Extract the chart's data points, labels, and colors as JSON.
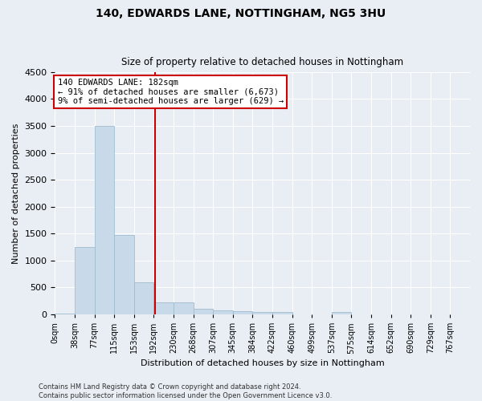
{
  "title_line1": "140, EDWARDS LANE, NOTTINGHAM, NG5 3HU",
  "title_line2": "Size of property relative to detached houses in Nottingham",
  "xlabel": "Distribution of detached houses by size in Nottingham",
  "ylabel": "Number of detached properties",
  "bar_color": "#c8daea",
  "bar_edge_color": "#a0bcd0",
  "categories": [
    "0sqm",
    "38sqm",
    "77sqm",
    "115sqm",
    "153sqm",
    "192sqm",
    "230sqm",
    "268sqm",
    "307sqm",
    "345sqm",
    "384sqm",
    "422sqm",
    "460sqm",
    "499sqm",
    "537sqm",
    "575sqm",
    "614sqm",
    "652sqm",
    "690sqm",
    "729sqm",
    "767sqm"
  ],
  "values": [
    10,
    1250,
    3500,
    1470,
    590,
    230,
    220,
    110,
    80,
    55,
    40,
    50,
    0,
    0,
    40,
    0,
    0,
    0,
    0,
    0,
    0
  ],
  "ylim": [
    0,
    4500
  ],
  "yticks": [
    0,
    500,
    1000,
    1500,
    2000,
    2500,
    3000,
    3500,
    4000,
    4500
  ],
  "annotation_text": "140 EDWARDS LANE: 182sqm\n← 91% of detached houses are smaller (6,673)\n9% of semi-detached houses are larger (629) →",
  "annotation_box_color": "#ffffff",
  "annotation_box_edge": "#cc0000",
  "vline_color": "#cc0000",
  "bin_width": 38,
  "footer_line1": "Contains HM Land Registry data © Crown copyright and database right 2024.",
  "footer_line2": "Contains public sector information licensed under the Open Government Licence v3.0.",
  "background_color": "#e8eef4",
  "grid_color": "#ffffff"
}
